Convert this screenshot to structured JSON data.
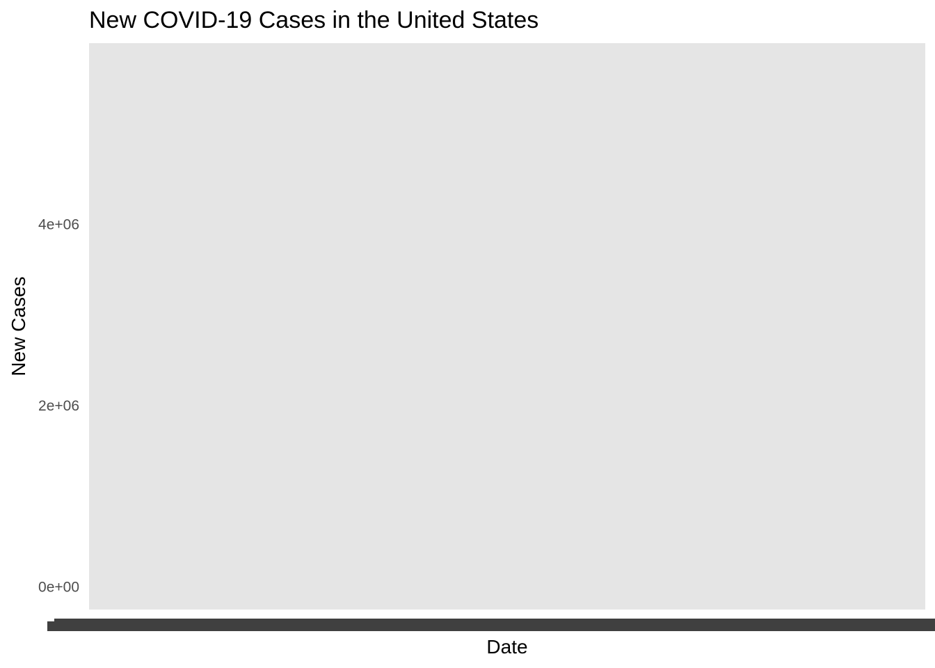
{
  "chart_data": {
    "type": "bar",
    "title": "New COVID-19 Cases in the United States",
    "xlabel": "Date",
    "ylabel": "New Cases",
    "ylim": [
      -250000,
      6000000
    ],
    "yticks": [
      {
        "value": 0,
        "label": "0e+00"
      },
      {
        "value": 2000000,
        "label": "2e+06"
      },
      {
        "value": 4000000,
        "label": "4e+06"
      }
    ],
    "x_tick_labels_legible": false,
    "categories": [],
    "values": [],
    "panel_background": "#e5e5e5",
    "gridlines": false,
    "legend": "none"
  },
  "colors": {
    "panel": "#e5e5e5",
    "tick_text": "#4d4d4d",
    "overplotted_x_labels": "#404040"
  }
}
